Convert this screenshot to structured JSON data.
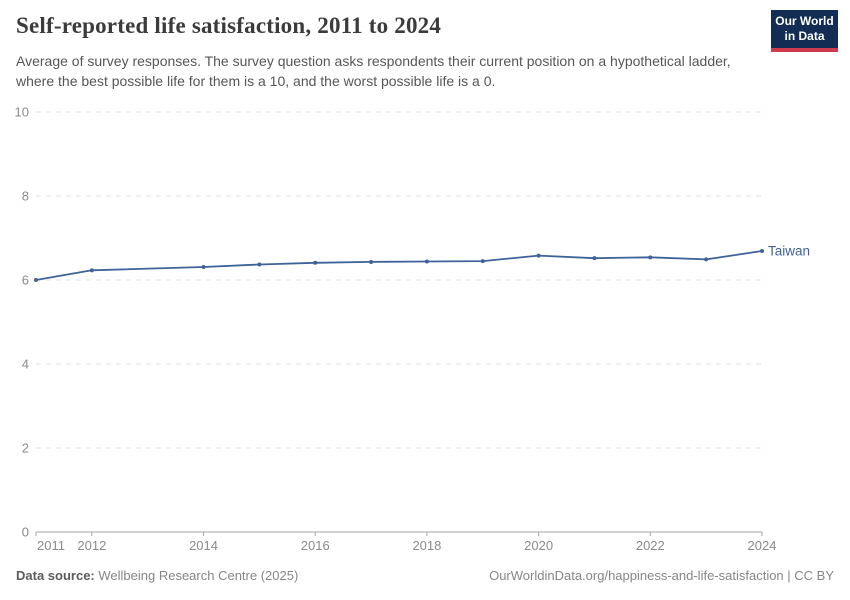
{
  "header": {
    "title": "Self-reported life satisfaction, 2011 to 2024",
    "subtitle": "Average of survey responses. The survey question asks respondents their current position on a hypothetical ladder, where the best possible life for them is a 10, and the worst possible life is a 0.",
    "logo": {
      "line1": "Our World",
      "line2": "in Data",
      "bg_color": "#122c54",
      "stripe_color": "#cf3a4c"
    }
  },
  "chart_data": {
    "type": "line",
    "title": "Self-reported life satisfaction, 2011 to 2024",
    "x": [
      2011,
      2012,
      2014,
      2015,
      2016,
      2017,
      2018,
      2019,
      2020,
      2021,
      2022,
      2023,
      2024
    ],
    "series": [
      {
        "name": "Taiwan",
        "color": "#3e6399",
        "values": [
          6.0,
          6.23,
          6.31,
          6.37,
          6.41,
          6.43,
          6.44,
          6.45,
          6.58,
          6.52,
          6.54,
          6.49,
          6.69
        ]
      }
    ],
    "note_missing_years": [
      2013
    ],
    "xlabel": "",
    "ylabel": "",
    "xlim": [
      2011,
      2024
    ],
    "ylim": [
      0,
      10
    ],
    "xticks": [
      2011,
      2012,
      2014,
      2016,
      2018,
      2020,
      2022,
      2024
    ],
    "yticks": [
      0,
      2,
      4,
      6,
      8,
      10
    ],
    "grid": "horizontal-dashed",
    "legend": "end-of-line-label",
    "colors": {
      "gridline": "#e2e2e2",
      "axis": "#a5a5a5",
      "tick_label": "#8a8a8a",
      "line": "#3e6399"
    }
  },
  "footer": {
    "source_label": "Data source:",
    "source_value": "Wellbeing Research Centre (2025)",
    "attribution": "OurWorldinData.org/happiness-and-life-satisfaction | CC BY"
  }
}
